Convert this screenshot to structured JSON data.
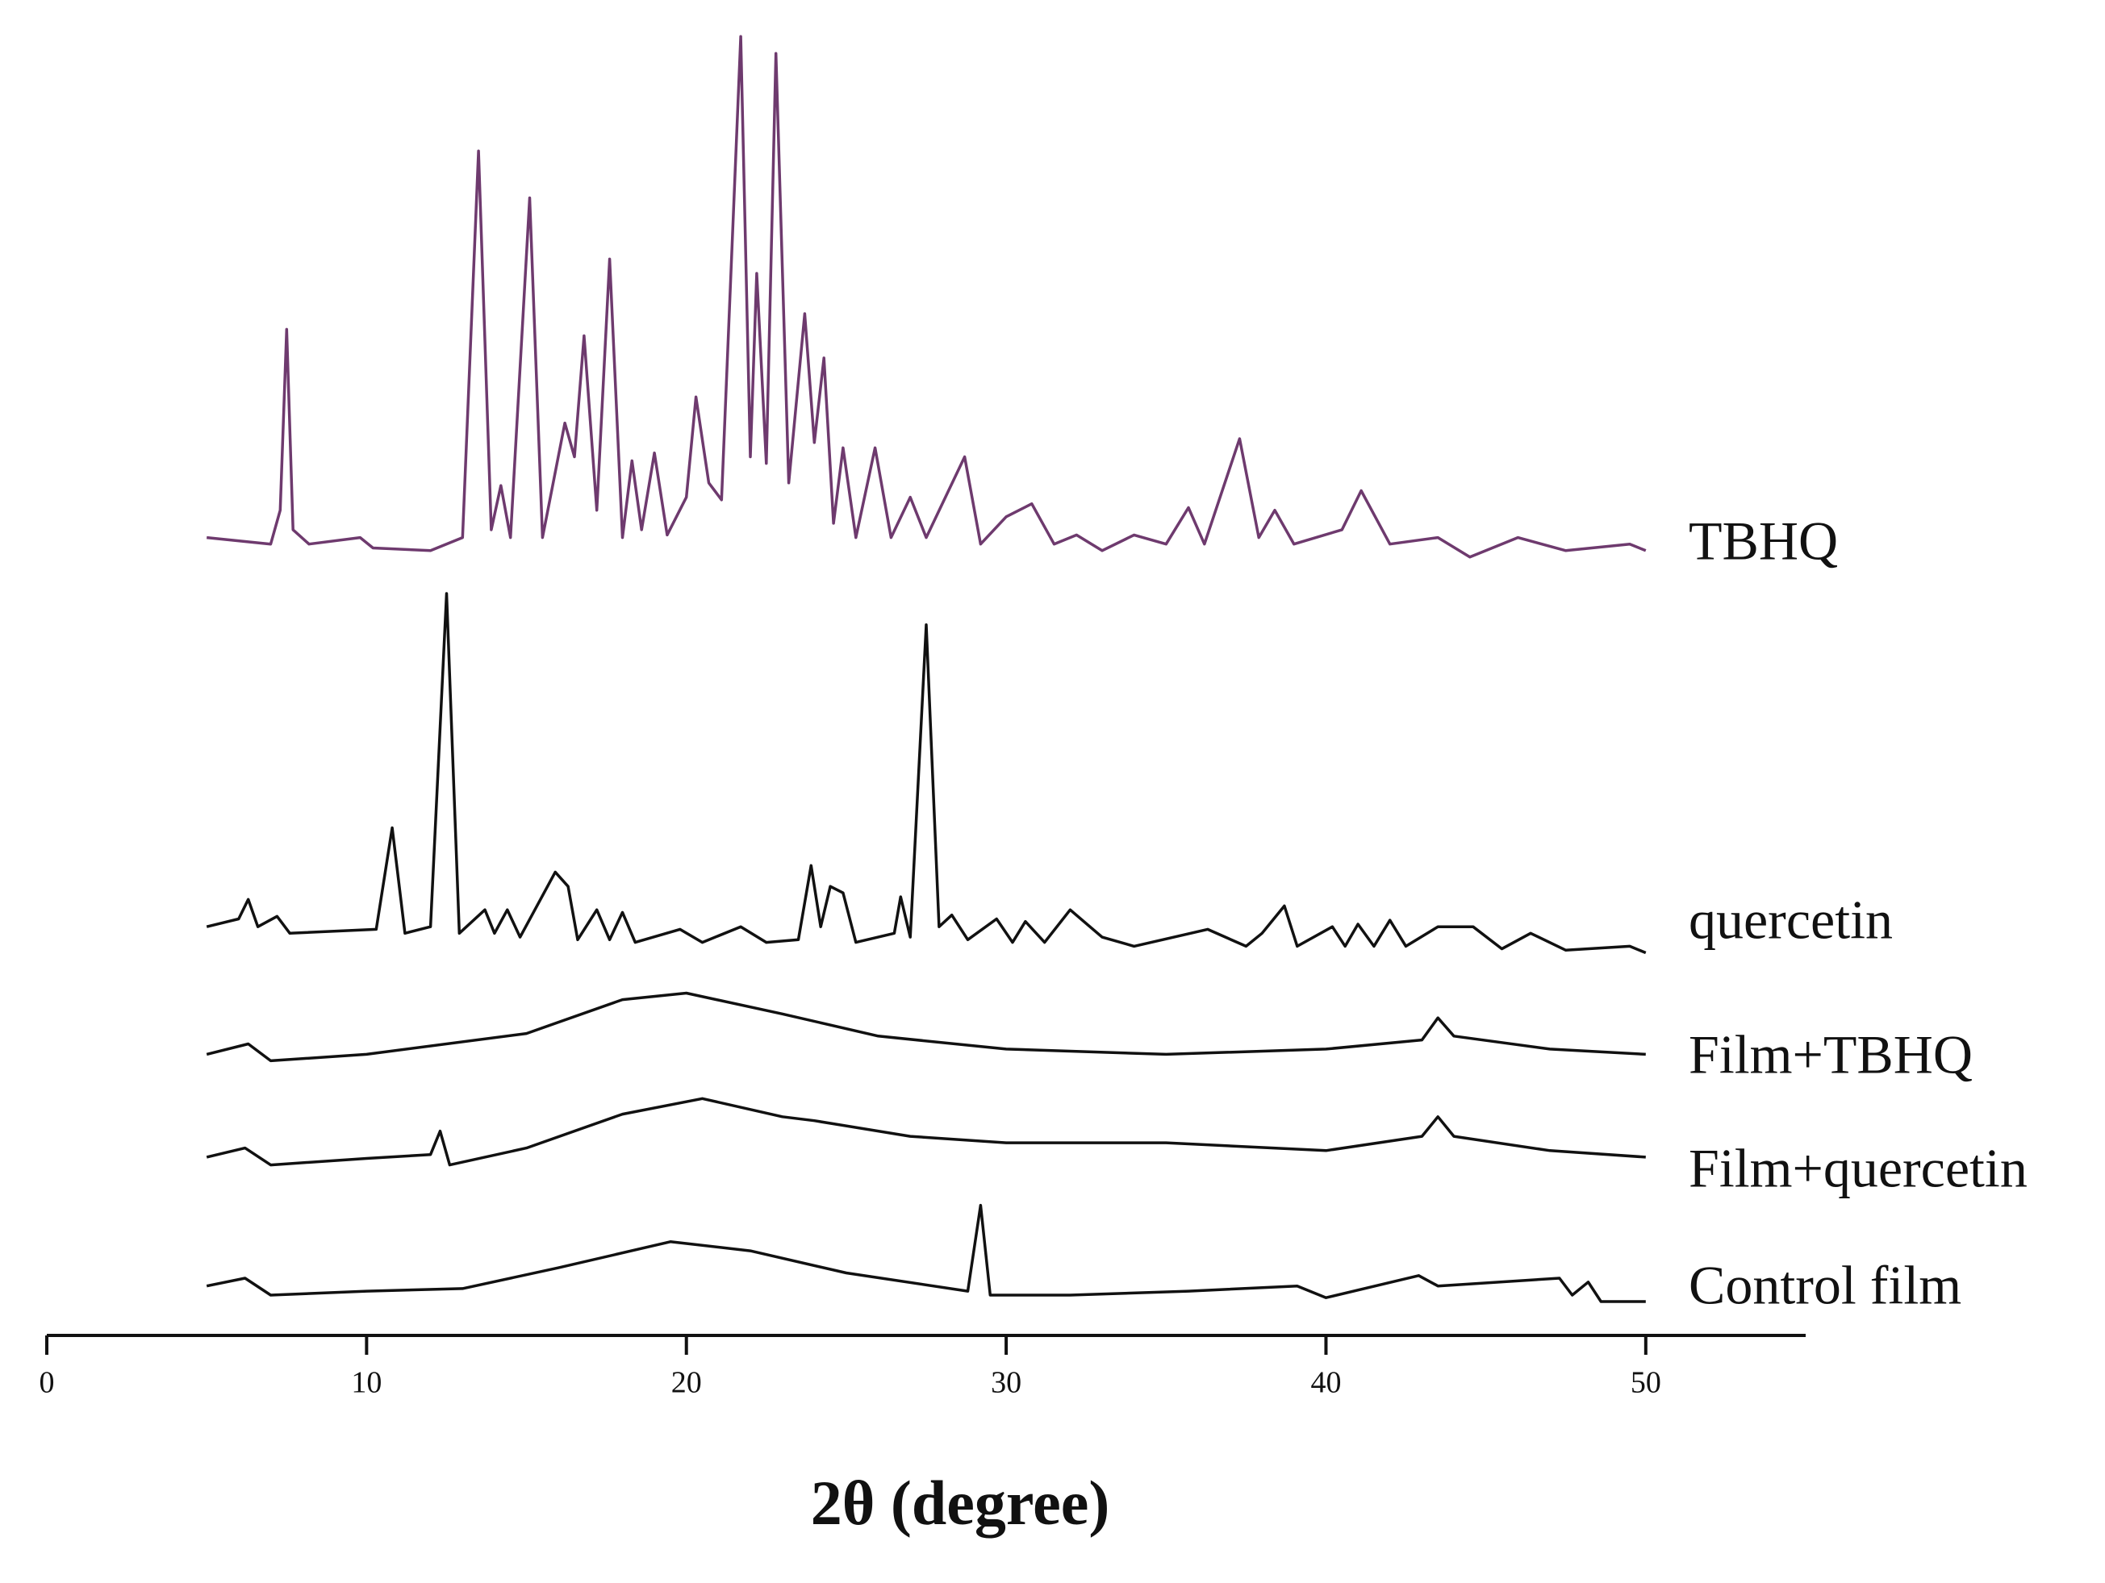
{
  "chart_data": {
    "type": "line",
    "xlabel": "2θ (degree)",
    "xlim": [
      0,
      55
    ],
    "xticks": [
      0,
      10,
      20,
      30,
      40,
      50
    ],
    "ylim": [
      0,
      100
    ],
    "series": [
      {
        "name": "TBHQ",
        "color": "#6e3a6e",
        "x": [
          5.0,
          7.0,
          7.3,
          7.5,
          7.7,
          8.2,
          9.8,
          10.2,
          12,
          13.0,
          13.5,
          13.9,
          14.2,
          14.5,
          15.1,
          15.5,
          16.2,
          16.5,
          16.8,
          17.2,
          17.6,
          18.0,
          18.3,
          18.6,
          19.0,
          19.4,
          20.0,
          20.3,
          20.7,
          21.1,
          21.7,
          22.0,
          22.2,
          22.5,
          22.8,
          23.2,
          23.7,
          24.0,
          24.3,
          24.6,
          24.9,
          25.3,
          25.9,
          26.4,
          27.0,
          27.5,
          28.7,
          29.2,
          30.0,
          30.8,
          31.5,
          32.2,
          33,
          34,
          35,
          35.7,
          36.2,
          37.3,
          37.9,
          38.4,
          39,
          40.5,
          41.1,
          42,
          43.5,
          44.5,
          46,
          47.5,
          49.5,
          50
        ],
        "values": [
          61.3,
          60.8,
          63.4,
          77.3,
          61.9,
          60.8,
          61.3,
          60.5,
          60.3,
          61.3,
          91.0,
          61.9,
          65.3,
          61.3,
          87.4,
          61.3,
          70.1,
          67.5,
          76.8,
          63.4,
          82.7,
          61.3,
          67.2,
          61.9,
          67.8,
          61.5,
          64.4,
          72.1,
          65.5,
          64.2,
          99.8,
          67.5,
          81.6,
          67.0,
          98.5,
          65.5,
          78.5,
          68.6,
          75.1,
          62.4,
          68.2,
          61.3,
          68.2,
          61.3,
          64.4,
          61.3,
          67.5,
          60.8,
          62.9,
          63.9,
          60.8,
          61.5,
          60.3,
          61.5,
          60.8,
          63.6,
          60.8,
          68.9,
          61.3,
          63.4,
          60.8,
          61.9,
          64.9,
          60.8,
          61.3,
          59.8,
          61.3,
          60.3,
          60.8,
          60.3
        ]
      },
      {
        "name": "quercetin",
        "color": "#111111",
        "x": [
          5.0,
          6.0,
          6.3,
          6.6,
          7.2,
          7.6,
          10.3,
          10.8,
          11.2,
          12.0,
          12.5,
          12.9,
          13.7,
          14.0,
          14.4,
          14.8,
          15.9,
          16.3,
          16.6,
          17.2,
          17.6,
          18.0,
          18.4,
          19.8,
          20.5,
          21.7,
          22.5,
          23.5,
          23.9,
          24.2,
          24.5,
          24.9,
          25.3,
          26.5,
          26.7,
          27.0,
          27.5,
          27.9,
          28.3,
          28.8,
          29.7,
          30.2,
          30.6,
          31.2,
          32.0,
          33,
          34,
          36.3,
          37.5,
          38.0,
          38.7,
          39.1,
          40.2,
          40.6,
          41.0,
          41.5,
          42.0,
          42.5,
          43.5,
          44.6,
          45.5,
          46.4,
          47.5,
          49.5,
          50
        ],
        "values": [
          31.4,
          32.0,
          33.5,
          31.4,
          32.2,
          30.9,
          31.2,
          39.0,
          30.9,
          31.4,
          57.0,
          30.9,
          32.7,
          30.9,
          32.7,
          30.6,
          35.6,
          34.5,
          30.4,
          32.7,
          30.4,
          32.5,
          30.2,
          31.2,
          30.2,
          31.4,
          30.2,
          30.4,
          36.1,
          31.4,
          34.5,
          34.0,
          30.2,
          30.9,
          33.7,
          30.6,
          54.6,
          31.4,
          32.3,
          30.4,
          32.0,
          30.2,
          31.8,
          30.2,
          32.7,
          30.6,
          29.9,
          31.2,
          29.9,
          30.9,
          33.0,
          29.9,
          31.4,
          29.9,
          31.6,
          29.9,
          31.9,
          29.9,
          31.4,
          31.4,
          29.7,
          30.9,
          29.6,
          29.9,
          29.4
        ]
      },
      {
        "name": "Film+TBHQ",
        "color": "#111111",
        "x": [
          5,
          6.3,
          7,
          10,
          15,
          18,
          20,
          23,
          26,
          30,
          35,
          40,
          43,
          43.5,
          44,
          47,
          50
        ],
        "values": [
          21.6,
          22.4,
          21.1,
          21.6,
          23.2,
          25.8,
          26.3,
          24.7,
          23.0,
          22.0,
          21.6,
          22.0,
          22.7,
          24.4,
          23.0,
          22.0,
          21.6
        ]
      },
      {
        "name": "Film+quercetin",
        "color": "#111111",
        "x": [
          5,
          6.2,
          7,
          10,
          12.0,
          12.3,
          12.6,
          15,
          18,
          20.5,
          23,
          24,
          27,
          30,
          35,
          40,
          43,
          43.5,
          44,
          47,
          50
        ],
        "values": [
          13.7,
          14.4,
          13.1,
          13.6,
          13.9,
          15.7,
          13.1,
          14.4,
          17.0,
          18.2,
          16.8,
          16.5,
          15.3,
          14.8,
          14.8,
          14.2,
          15.3,
          16.8,
          15.3,
          14.2,
          13.7
        ]
      },
      {
        "name": "Control film",
        "color": "#111111",
        "x": [
          5,
          6.2,
          7,
          10,
          13,
          16,
          19.5,
          22,
          25,
          28.8,
          29.2,
          29.5,
          32,
          35.7,
          39.1,
          40,
          42.9,
          43.5,
          47.3,
          47.7,
          48.2,
          48.6,
          50
        ],
        "values": [
          3.8,
          4.4,
          3.1,
          3.4,
          3.6,
          5.2,
          7.2,
          6.5,
          4.8,
          3.4,
          10.0,
          3.1,
          3.1,
          3.4,
          3.8,
          2.9,
          4.6,
          3.8,
          4.4,
          3.1,
          4.1,
          2.6,
          2.6
        ]
      }
    ]
  }
}
